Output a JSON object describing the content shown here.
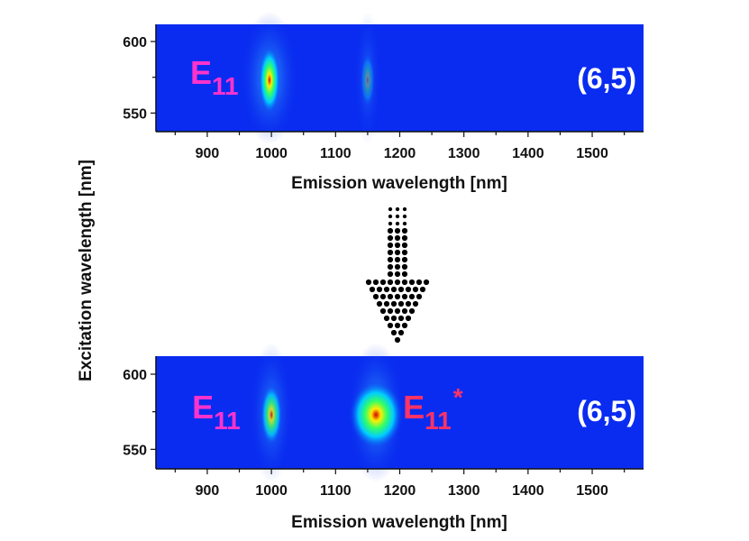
{
  "figure": {
    "shared_ylabel": "Excitation wavelength [nm]",
    "transition_arrow": "down",
    "colors": {
      "background": "#0a2cf0",
      "e11_label": "#ff33cc",
      "e11_star_label": "#ff3366",
      "chirality_label": "#ffffff",
      "arrow_dots": "#000000"
    }
  },
  "chart_data": [
    {
      "type": "heatmap",
      "xlabel": "Emission wavelength [nm]",
      "ylabel": "Excitation wavelength [nm]",
      "xlim": [
        820,
        1580
      ],
      "ylim": [
        537,
        612
      ],
      "xticks": [
        900,
        1000,
        1100,
        1200,
        1300,
        1400,
        1500
      ],
      "yticks": [
        550,
        600
      ],
      "peaks": [
        {
          "label_main": "E",
          "label_sub": "11",
          "label_sup": "",
          "x": 997,
          "y": 573,
          "intensity": 1.0
        },
        {
          "label_main": "",
          "label_sub": "",
          "label_sup": "",
          "x": 1150,
          "y": 573,
          "intensity": 0.06
        }
      ],
      "chirality": "(6,5)"
    },
    {
      "type": "heatmap",
      "xlabel": "Emission wavelength [nm]",
      "ylabel": "Excitation wavelength [nm]",
      "xlim": [
        820,
        1580
      ],
      "ylim": [
        537,
        612
      ],
      "xticks": [
        900,
        1000,
        1100,
        1200,
        1300,
        1400,
        1500
      ],
      "yticks": [
        550,
        600
      ],
      "peaks": [
        {
          "label_main": "E",
          "label_sub": "11",
          "label_sup": "",
          "x": 1000,
          "y": 573,
          "intensity": 0.55
        },
        {
          "label_main": "E",
          "label_sub": "11",
          "label_sup": "*",
          "x": 1163,
          "y": 573,
          "intensity": 1.0
        }
      ],
      "chirality": "(6,5)"
    }
  ]
}
